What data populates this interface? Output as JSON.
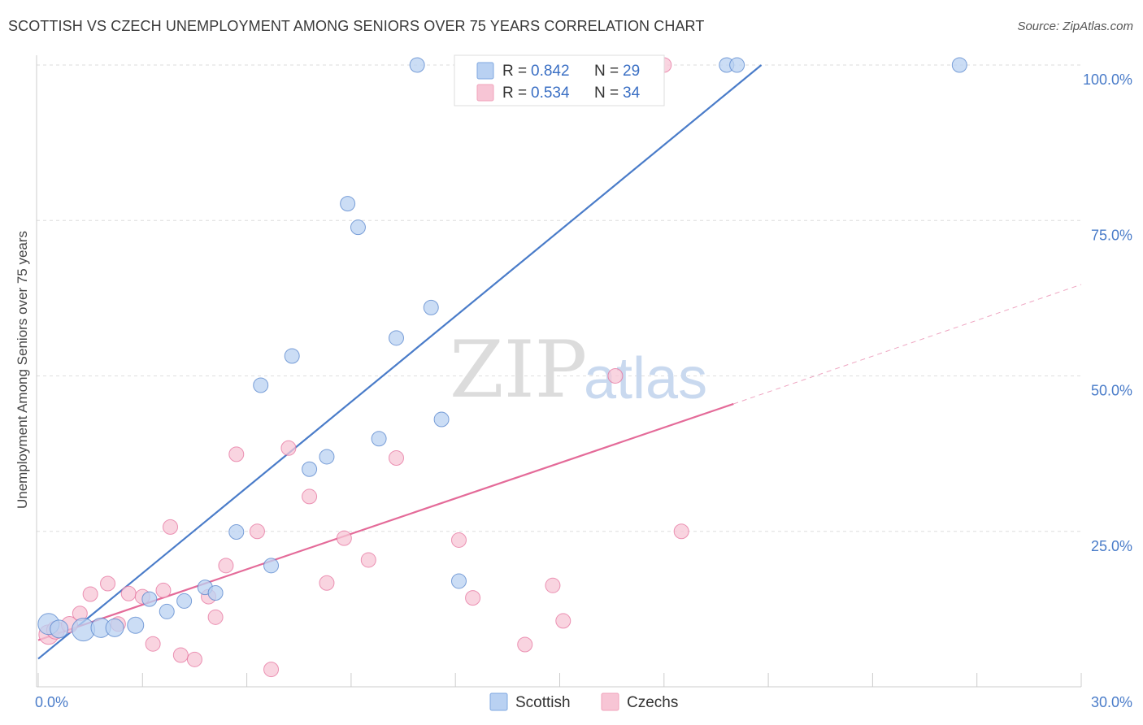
{
  "header": {
    "title": "SCOTTISH VS CZECH UNEMPLOYMENT AMONG SENIORS OVER 75 YEARS CORRELATION CHART",
    "source": "Source: ZipAtlas.com"
  },
  "watermark": {
    "zip": "ZIP",
    "atlas": "atlas"
  },
  "legend": {
    "r_label": "R =",
    "n_label": "N =",
    "items": [
      {
        "r": "0.842",
        "n": "29",
        "color": "#7fa8e0"
      },
      {
        "r": "0.534",
        "n": "34",
        "color": "#f0a3bb"
      }
    ]
  },
  "bottom_legend": [
    {
      "label": "Scottish",
      "color": "#7fa8e0"
    },
    {
      "label": "Czechs",
      "color": "#f0a3bb"
    }
  ],
  "chart_data": {
    "type": "scatter",
    "title": "SCOTTISH VS CZECH UNEMPLOYMENT AMONG SENIORS OVER 75 YEARS CORRELATION CHART",
    "xlabel": "",
    "ylabel": "Unemployment Among Seniors over 75 years",
    "xlim": [
      0,
      30
    ],
    "ylim": [
      0,
      100
    ],
    "x_tick_labels": [
      "0.0%",
      "30.0%"
    ],
    "y_tick_labels": [
      "25.0%",
      "50.0%",
      "75.0%",
      "100.0%"
    ],
    "y_tick_values": [
      25,
      50,
      75,
      100
    ],
    "grid": "dashed-horizontal",
    "legend_position": "top-center",
    "series": [
      {
        "name": "Scottish",
        "color": "#4a7cc9",
        "fill": "#b9d1f2",
        "points": [
          [
            0.3,
            10.1,
            13
          ],
          [
            0.6,
            9.3,
            11
          ],
          [
            1.3,
            9.2,
            14
          ],
          [
            1.8,
            9.5,
            12
          ],
          [
            2.2,
            9.5,
            11
          ],
          [
            2.8,
            9.9,
            10
          ],
          [
            3.2,
            14.1,
            9
          ],
          [
            3.7,
            12.1,
            9
          ],
          [
            4.2,
            13.8,
            9
          ],
          [
            4.8,
            16.0,
            9
          ],
          [
            5.1,
            15.1,
            9
          ],
          [
            5.7,
            24.9,
            9
          ],
          [
            6.4,
            48.5,
            9
          ],
          [
            6.7,
            19.5,
            9
          ],
          [
            7.3,
            53.2,
            9
          ],
          [
            7.8,
            35.0,
            9
          ],
          [
            8.3,
            37.0,
            9
          ],
          [
            8.9,
            77.7,
            9
          ],
          [
            9.2,
            73.9,
            9
          ],
          [
            9.8,
            39.9,
            9
          ],
          [
            10.3,
            56.1,
            9
          ],
          [
            10.9,
            100,
            9
          ],
          [
            11.3,
            61.0,
            9
          ],
          [
            11.6,
            43.0,
            9
          ],
          [
            12.1,
            17.0,
            9
          ],
          [
            14.1,
            100,
            9
          ],
          [
            19.8,
            100,
            9
          ],
          [
            20.1,
            100,
            9
          ],
          [
            26.5,
            100,
            9
          ]
        ],
        "trend": {
          "x": [
            0,
            20.8
          ],
          "y": [
            4.5,
            100
          ]
        }
      },
      {
        "name": "Czechs",
        "color": "#e46b99",
        "fill": "#f7c5d5",
        "points": [
          [
            0.3,
            8.4,
            12
          ],
          [
            0.5,
            9.1,
            11
          ],
          [
            0.9,
            10.0,
            10
          ],
          [
            1.2,
            11.8,
            9
          ],
          [
            1.5,
            14.9,
            9
          ],
          [
            2.0,
            16.6,
            9
          ],
          [
            2.3,
            10.1,
            9
          ],
          [
            2.6,
            15.0,
            9
          ],
          [
            3.0,
            14.5,
            9
          ],
          [
            3.3,
            6.9,
            9
          ],
          [
            3.6,
            15.5,
            9
          ],
          [
            3.8,
            25.7,
            9
          ],
          [
            4.1,
            5.1,
            9
          ],
          [
            4.5,
            4.4,
            9
          ],
          [
            4.9,
            14.5,
            9
          ],
          [
            5.1,
            11.2,
            9
          ],
          [
            5.4,
            19.5,
            9
          ],
          [
            5.7,
            37.4,
            9
          ],
          [
            6.3,
            25.0,
            9
          ],
          [
            6.7,
            2.8,
            9
          ],
          [
            7.2,
            38.4,
            9
          ],
          [
            7.8,
            30.6,
            9
          ],
          [
            8.3,
            16.7,
            9
          ],
          [
            8.8,
            23.9,
            9
          ],
          [
            9.5,
            20.4,
            9
          ],
          [
            10.3,
            36.8,
            9
          ],
          [
            12.1,
            23.6,
            9
          ],
          [
            12.5,
            14.3,
            9
          ],
          [
            14.0,
            6.8,
            9
          ],
          [
            14.8,
            16.3,
            9
          ],
          [
            15.1,
            10.6,
            9
          ],
          [
            16.6,
            50.0,
            9
          ],
          [
            18.0,
            100,
            9
          ],
          [
            18.5,
            25.0,
            0
          ]
        ],
        "trend": {
          "x": [
            0,
            20
          ],
          "y": [
            7.5,
            45.5
          ]
        },
        "trend_extension": {
          "x": [
            20,
            30
          ],
          "y": [
            45.5,
            64.7
          ]
        }
      }
    ]
  }
}
